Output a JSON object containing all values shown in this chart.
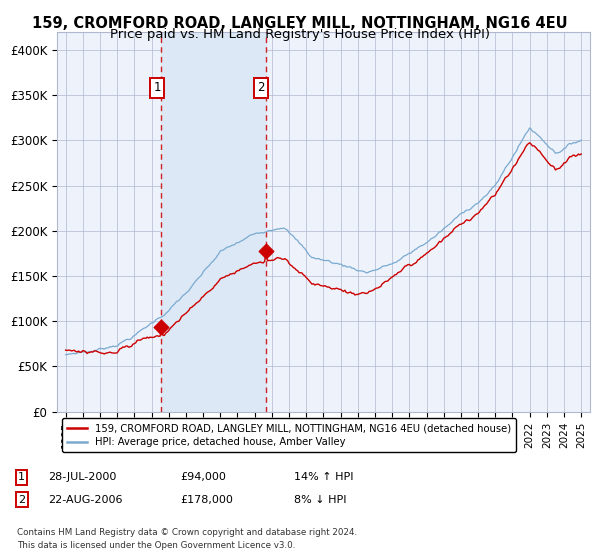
{
  "title_line1": "159, CROMFORD ROAD, LANGLEY MILL, NOTTINGHAM, NG16 4EU",
  "title_line2": "Price paid vs. HM Land Registry's House Price Index (HPI)",
  "legend_label_red": "159, CROMFORD ROAD, LANGLEY MILL, NOTTINGHAM, NG16 4EU (detached house)",
  "legend_label_blue": "HPI: Average price, detached house, Amber Valley",
  "sale1_date_num": 2000.57,
  "sale1_price": 94000,
  "sale1_label": "1",
  "sale2_date_num": 2006.64,
  "sale2_price": 178000,
  "sale2_label": "2",
  "ylim_min": 0,
  "ylim_max": 420000,
  "yticks": [
    0,
    50000,
    100000,
    150000,
    200000,
    250000,
    300000,
    350000,
    400000
  ],
  "ytick_labels": [
    "£0",
    "£50K",
    "£100K",
    "£150K",
    "£200K",
    "£250K",
    "£300K",
    "£350K",
    "£400K"
  ],
  "xmin": 1994.5,
  "xmax": 2025.5,
  "background_color": "#ffffff",
  "plot_bg_color": "#eef2fb",
  "grid_color": "#b0b8d0",
  "red_color": "#cc0000",
  "blue_color": "#7aaad0",
  "shade_color": "#dce8f5",
  "footnote_line1": "Contains HM Land Registry data © Crown copyright and database right 2024.",
  "footnote_line2": "This data is licensed under the Open Government Licence v3.0.",
  "title_fontsize": 10.5,
  "subtitle_fontsize": 9.5,
  "annot1_col1": "28-JUL-2000",
  "annot1_col2": "£94,000",
  "annot1_col3": "14% ↑ HPI",
  "annot2_col1": "22-AUG-2006",
  "annot2_col2": "£178,000",
  "annot2_col3": "8% ↓ HPI"
}
